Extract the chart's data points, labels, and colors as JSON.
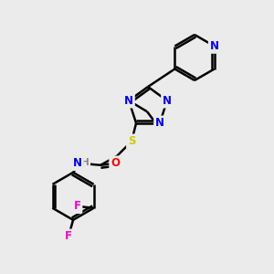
{
  "background_color": "#ebebeb",
  "bond_color": "#000000",
  "bond_width": 1.8,
  "atom_colors": {
    "N": "#0000ff",
    "O": "#ff0000",
    "S": "#cccc00",
    "F": "#ff00cc",
    "H": "#888888",
    "C": "#000000"
  },
  "font_size": 8.5,
  "fig_width": 3.0,
  "fig_height": 3.0,
  "dpi": 100
}
